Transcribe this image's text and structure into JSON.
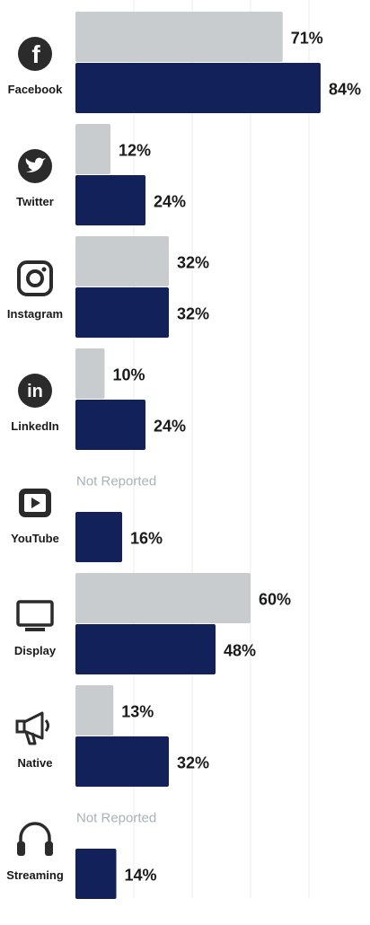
{
  "chart_data": {
    "type": "bar",
    "orientation": "horizontal",
    "grid": true,
    "legend": "none",
    "xlim": [
      0,
      100
    ],
    "colors": {
      "series_1": "#c8cccf",
      "series_2": "#13215a"
    },
    "categories": [
      "Facebook",
      "Twitter",
      "Instagram",
      "LinkedIn",
      "YouTube",
      "Display",
      "Native",
      "Streaming"
    ],
    "icons": [
      "facebook-icon",
      "twitter-icon",
      "instagram-icon",
      "linkedin-icon",
      "youtube-icon",
      "display-monitor-icon",
      "megaphone-icon",
      "headphones-icon"
    ],
    "series": [
      {
        "values": [
          71,
          12,
          32,
          10,
          null,
          60,
          13,
          null
        ],
        "labels": [
          "71%",
          "12%",
          "32%",
          "10%",
          "Not Reported",
          "60%",
          "13%",
          "Not Reported"
        ]
      },
      {
        "values": [
          84,
          24,
          32,
          24,
          16,
          48,
          32,
          14
        ],
        "labels": [
          "84%",
          "24%",
          "32%",
          "24%",
          "16%",
          "48%",
          "32%",
          "14%"
        ]
      }
    ]
  }
}
